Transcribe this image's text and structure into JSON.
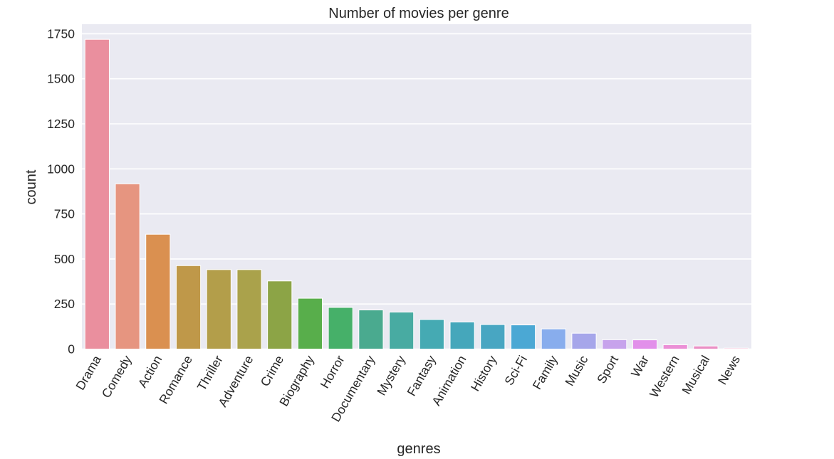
{
  "chart_data": {
    "type": "bar",
    "title": "Number of movies per genre",
    "xlabel": "genres",
    "ylabel": "count",
    "categories": [
      "Drama",
      "Comedy",
      "Action",
      "Romance",
      "Thriller",
      "Adventure",
      "Crime",
      "Biography",
      "Horror",
      "Documentary",
      "Mystery",
      "Fantasy",
      "Animation",
      "History",
      "Sci-Fi",
      "Family",
      "Music",
      "Sport",
      "War",
      "Western",
      "Musical",
      "News"
    ],
    "values": [
      1719,
      917,
      637,
      463,
      441,
      441,
      378,
      282,
      231,
      217,
      205,
      164,
      150,
      136,
      134,
      112,
      88,
      52,
      51,
      24,
      17,
      5
    ],
    "ylim": [
      0,
      1800
    ],
    "yticks": [
      0,
      250,
      500,
      750,
      1000,
      1250,
      1500,
      1750
    ],
    "grid": true,
    "colors": [
      "#ea8f9e",
      "#e69580",
      "#da9050",
      "#bf9849",
      "#b39e4a",
      "#aaa24b",
      "#8ca446",
      "#58ae4b",
      "#46b069",
      "#4aaa8f",
      "#48aba2",
      "#45aab3",
      "#45a7bb",
      "#48a6c2",
      "#4ba8d4",
      "#88aded",
      "#a6a6ea",
      "#c7a3ec",
      "#e290ea",
      "#eb8fd6",
      "#ea8fc5",
      "#ea8fb6"
    ]
  }
}
